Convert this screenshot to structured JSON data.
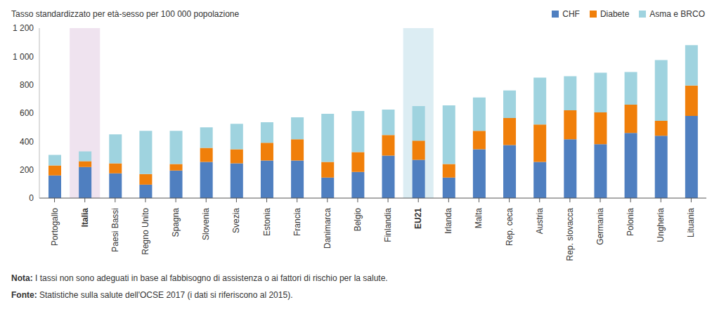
{
  "chart_data": {
    "type": "bar",
    "title": "Tasso standardizzato per età-sesso per 100 000 popolazione",
    "categories": [
      "Portogallo",
      "Italia",
      "Paesi Bassi",
      "Regno Unito",
      "Spagna",
      "Slovenia",
      "Svezia",
      "Estonia",
      "Francia",
      "Danimarca",
      "Belgio",
      "Finlandia",
      "EU21",
      "Irlanda",
      "Malta",
      "Rep. ceca",
      "Austria",
      "Rep. slovacca",
      "Germania",
      "Polonia",
      "Ungheria",
      "Lituania"
    ],
    "series": [
      {
        "name": "CHF",
        "color": "#4f7fc0",
        "values": [
          160,
          220,
          175,
          95,
          195,
          255,
          245,
          265,
          265,
          145,
          185,
          300,
          270,
          145,
          345,
          375,
          255,
          415,
          380,
          460,
          440,
          580
        ]
      },
      {
        "name": "Diabete",
        "color": "#f07f0a",
        "values": [
          70,
          40,
          70,
          75,
          45,
          100,
          100,
          125,
          150,
          110,
          140,
          145,
          135,
          95,
          130,
          190,
          265,
          205,
          225,
          200,
          105,
          215
        ]
      },
      {
        "name": "Asma e BRCO",
        "color": "#9fd3df",
        "values": [
          75,
          70,
          205,
          305,
          235,
          145,
          180,
          145,
          155,
          340,
          290,
          180,
          245,
          415,
          235,
          195,
          330,
          240,
          280,
          230,
          430,
          285
        ]
      }
    ],
    "stacked": true,
    "grid": false,
    "legend": "top-right",
    "ylim": [
      0,
      1200
    ],
    "yticks": [
      0,
      200,
      400,
      600,
      800,
      {
        "value": 1000,
        "label": "1 000"
      },
      {
        "value": 1200,
        "label": "1 200"
      }
    ],
    "notes": [
      {
        "label": "Nota:",
        "text": "I tassi non sono adeguati in base al fabbisogno di assistenza o ai fattori di rischio per la salute."
      },
      {
        "label": "Fonte:",
        "text": "Statistiche sulla salute dell'OCSE 2017 (i dati si riferiscono al 2015)."
      }
    ]
  }
}
